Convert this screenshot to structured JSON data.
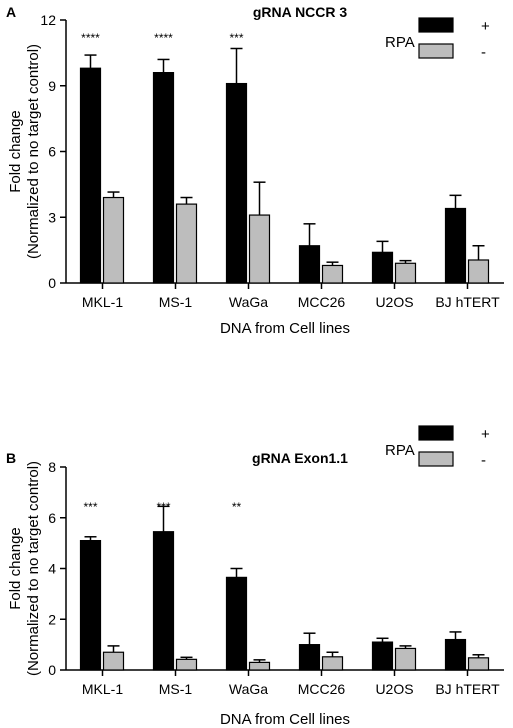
{
  "chart_data": [
    {
      "type": "bar",
      "panel": "A",
      "title": "gRNA NCCR 3",
      "xlabel": "DNA from Cell lines",
      "ylabel_lines": [
        "Fold change",
        "(Normalized to no target control)"
      ],
      "ylim": [
        0,
        12
      ],
      "yticks": [
        0,
        3,
        6,
        9,
        12
      ],
      "categories": [
        "MKL-1",
        "MS-1",
        "WaGa",
        "MCC26",
        "U2OS",
        "BJ hTERT"
      ],
      "significance": [
        "****",
        "****",
        "***",
        "",
        "",
        ""
      ],
      "legend": {
        "title": "RPA",
        "placement": "top-right"
      },
      "series": [
        {
          "name": "+",
          "color": "#000000",
          "values": [
            9.8,
            9.6,
            9.1,
            1.7,
            1.4,
            3.4
          ],
          "errors": [
            0.6,
            0.6,
            1.6,
            1.0,
            0.5,
            0.6
          ]
        },
        {
          "name": "-",
          "color": "#bdbdbd",
          "values": [
            3.9,
            3.6,
            3.1,
            0.8,
            0.9,
            1.05
          ],
          "errors": [
            0.25,
            0.3,
            1.5,
            0.15,
            0.12,
            0.65
          ]
        }
      ]
    },
    {
      "type": "bar",
      "panel": "B",
      "title": "gRNA Exon1.1",
      "xlabel": "DNA from Cell lines",
      "ylabel_lines": [
        "Fold change",
        "(Normalized to no target control)"
      ],
      "ylim": [
        0,
        8
      ],
      "yticks": [
        0,
        2,
        4,
        6,
        8
      ],
      "categories": [
        "MKL-1",
        "MS-1",
        "WaGa",
        "MCC26",
        "U2OS",
        "BJ hTERT"
      ],
      "significance": [
        "***",
        "***",
        "**",
        "",
        "",
        ""
      ],
      "legend": {
        "title": "RPA",
        "placement": "top-right"
      },
      "series": [
        {
          "name": "+",
          "color": "#000000",
          "values": [
            5.1,
            5.45,
            3.65,
            1.0,
            1.1,
            1.2
          ],
          "errors": [
            0.15,
            1.0,
            0.35,
            0.45,
            0.15,
            0.3
          ]
        },
        {
          "name": "-",
          "color": "#bdbdbd",
          "values": [
            0.7,
            0.42,
            0.3,
            0.52,
            0.85,
            0.48
          ],
          "errors": [
            0.25,
            0.08,
            0.1,
            0.18,
            0.1,
            0.12
          ]
        }
      ]
    }
  ]
}
